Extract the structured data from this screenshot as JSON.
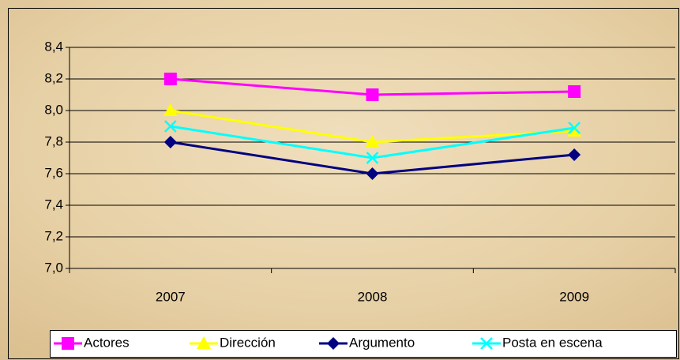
{
  "chart_data": {
    "type": "line",
    "categories": [
      "2007",
      "2008",
      "2009"
    ],
    "series": [
      {
        "name": "Actores",
        "color": "#ff00ff",
        "marker": "square",
        "values": [
          8.2,
          8.1,
          8.12
        ]
      },
      {
        "name": "Dirección",
        "color": "#ffff00",
        "marker": "triangle",
        "values": [
          8.0,
          7.8,
          7.87
        ]
      },
      {
        "name": "Argumento",
        "color": "#000080",
        "marker": "diamond",
        "values": [
          7.8,
          7.6,
          7.72
        ]
      },
      {
        "name": "Posta en escena",
        "color": "#00ffff",
        "marker": "x",
        "values": [
          7.9,
          7.7,
          7.89
        ]
      }
    ],
    "ylim": [
      7.0,
      8.4
    ],
    "yticks": [
      {
        "value": 7.0,
        "label": "7,0"
      },
      {
        "value": 7.2,
        "label": "7,2"
      },
      {
        "value": 7.4,
        "label": "7,4"
      },
      {
        "value": 7.6,
        "label": "7,6"
      },
      {
        "value": 7.8,
        "label": "7,8"
      },
      {
        "value": 8.0,
        "label": "8,0"
      },
      {
        "value": 8.2,
        "label": "8,2"
      },
      {
        "value": 8.4,
        "label": "8,4"
      }
    ],
    "grid": true,
    "legend": "bottom"
  }
}
